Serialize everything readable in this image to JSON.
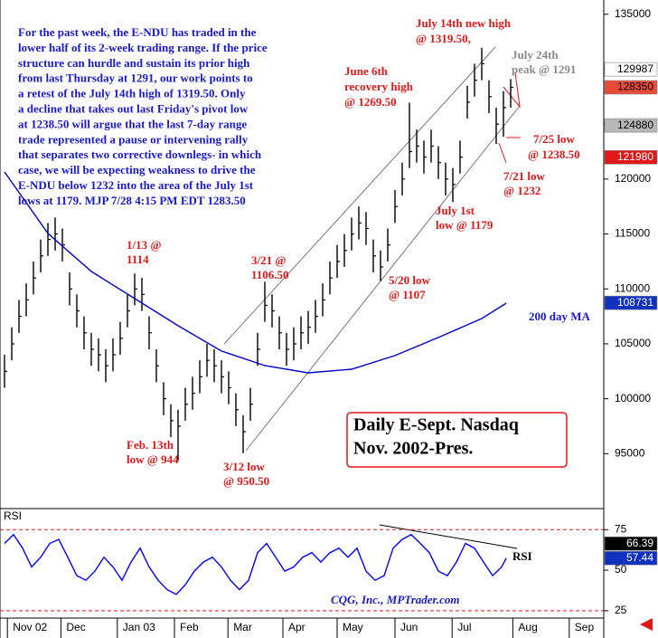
{
  "chart_data": [
    {
      "type": "hlc",
      "title": [
        "Daily E-Sept. Nasdaq",
        "Nov. 2002-Pres."
      ],
      "xlim": [
        -0.625,
        82.875
      ],
      "ylim": [
        90000,
        136300
      ],
      "yticks": [
        95000,
        100000,
        105000,
        110000,
        115000,
        120000,
        125000,
        130000,
        135000
      ],
      "color": "#000000",
      "high": [
        104000,
        106500,
        109000,
        110500,
        112500,
        114500,
        116000,
        116500,
        115500,
        111500,
        109500,
        107500,
        106000,
        105500,
        104500,
        105500,
        107000,
        109500,
        111400,
        111000,
        107500,
        104500,
        101500,
        99500,
        99000,
        101000,
        102000,
        103500,
        105000,
        104500,
        103500,
        102500,
        100500,
        98500,
        101000,
        106000,
        110650,
        109500,
        107500,
        106000,
        106500,
        107500,
        108000,
        109000,
        110500,
        112500,
        114000,
        115000,
        116500,
        117500,
        117000,
        114500,
        113500,
        115500,
        119000,
        121500,
        126950,
        124500,
        123500,
        124500,
        123000,
        121500,
        121000,
        123500,
        128500,
        130500,
        131950,
        129000,
        126500,
        128000,
        129100
      ],
      "low": [
        101000,
        103500,
        106000,
        107500,
        109500,
        111500,
        113000,
        113500,
        112500,
        108500,
        106500,
        104500,
        103000,
        102500,
        101500,
        102500,
        104000,
        106500,
        108500,
        108000,
        104500,
        101500,
        98500,
        96500,
        94400,
        98000,
        99000,
        100500,
        102000,
        101500,
        100500,
        99500,
        97500,
        95050,
        98000,
        103000,
        107000,
        106500,
        104500,
        103000,
        103500,
        104500,
        105000,
        106000,
        107500,
        109500,
        111000,
        112000,
        113500,
        114500,
        114000,
        111500,
        110700,
        112500,
        116000,
        118500,
        121000,
        121500,
        120500,
        121500,
        120000,
        118500,
        117900,
        120500,
        125500,
        127500,
        129000,
        126000,
        123200,
        123850,
        126500
      ],
      "close": [
        102500,
        105000,
        107500,
        109000,
        111000,
        113000,
        114500,
        115000,
        114000,
        110000,
        108000,
        106000,
        104500,
        104000,
        103000,
        104000,
        105500,
        108000,
        110000,
        109500,
        106000,
        103000,
        100000,
        98000,
        97500,
        99500,
        100500,
        102000,
        103500,
        103000,
        102000,
        101000,
        99000,
        97000,
        99500,
        104500,
        108500,
        108000,
        106000,
        104500,
        105000,
        106000,
        106500,
        107500,
        109000,
        111000,
        112500,
        113500,
        115000,
        116000,
        115500,
        113000,
        112000,
        114000,
        117500,
        120000,
        122500,
        123000,
        122000,
        123000,
        121500,
        120000,
        119500,
        122000,
        127000,
        129000,
        130500,
        127500,
        125000,
        126500,
        128350
      ],
      "series": [
        {
          "name": "200 day MA",
          "color": "#0000cc",
          "x": [
            0,
            6,
            12,
            18,
            24,
            30,
            36,
            42,
            48,
            54,
            60,
            66,
            69.4
          ],
          "values": [
            120650,
            115050,
            111590,
            109120,
            106650,
            104340,
            103020,
            102360,
            102690,
            103930,
            105580,
            107300,
            108700
          ]
        }
      ],
      "price_markers": [
        {
          "value": 129987,
          "color": "#ffffff",
          "text_color": "#000000"
        },
        {
          "value": 128350,
          "color": "#e84a3a",
          "text_color": "#000000"
        },
        {
          "value": 124880,
          "color": "#b8b8b8",
          "text_color": "#000000"
        },
        {
          "value": 121980,
          "color": "#e01818",
          "text_color": "#ffffff"
        },
        {
          "value": 108731,
          "color": "#1030c0",
          "text_color": "#ffffff"
        }
      ],
      "annotations": [
        {
          "color": "#1a1acc",
          "lines": [
            "For the past week, the E-NDU has traded in the",
            "lower half of its 2-week trading range. If the price",
            "structure can hurdle and sustain its prior high",
            "from last Thursday at 1291, our work points to",
            "a retest of the July 14th high of 1319.50. Only",
            "a decline that takes out last Friday's pivot low",
            "at 1238.50 will argue that the last 7-day range",
            "trade represented a pause or intervening rally",
            "that separates two corrective downlegs- in which",
            "case, we will be expecting weakness to drive the",
            "E-NDU below 1232 into the area of the July 1st",
            "lows  at 1179.  MJP 7/28 4:15 PM EDT 1283.50"
          ]
        },
        {
          "color": "#e01818",
          "lines": [
            "July 14th new high",
            "@ 1319.50,"
          ]
        },
        {
          "color": "#8a8a8a",
          "lines": [
            "July 24th",
            "peak @ 1291"
          ]
        },
        {
          "color": "#e01818",
          "lines": [
            "June 6th",
            "recovery high",
            "@ 1269.50"
          ]
        },
        {
          "color": "#e01818",
          "lines": [
            "1/13 @",
            "1114"
          ]
        },
        {
          "color": "#e01818",
          "lines": [
            "3/21 @",
            "1106.50"
          ]
        },
        {
          "color": "#e01818",
          "lines": [
            "5/20 low",
            "@ 1107"
          ]
        },
        {
          "color": "#e01818",
          "lines": [
            "July 1st",
            "low @ 1179"
          ]
        },
        {
          "color": "#e01818",
          "lines": [
            "7/25 low",
            "@ 1238.50"
          ]
        },
        {
          "color": "#e01818",
          "lines": [
            "7/21 low",
            "@ 1232"
          ]
        },
        {
          "color": "#e01818",
          "lines": [
            "Feb. 13th",
            "low @ 944"
          ]
        },
        {
          "color": "#e01818",
          "lines": [
            "3/12 low",
            "@ 950.50"
          ]
        },
        {
          "color": "#1a1acc",
          "lines": [
            "200 day MA"
          ]
        }
      ]
    },
    {
      "type": "line",
      "title": "RSI",
      "source": "CQG, Inc., MPTrader.com",
      "xlim": [
        -0.625,
        82.875
      ],
      "ylim": [
        21,
        88
      ],
      "yticks": [
        25,
        50,
        75
      ],
      "guide_lines": [
        75,
        25
      ],
      "xticks": [
        {
          "value": 0.4,
          "label": "Nov 02"
        },
        {
          "value": 7.8,
          "label": "Dec"
        },
        {
          "value": 15.6,
          "label": "Jan 03"
        },
        {
          "value": 23.5,
          "label": "Feb"
        },
        {
          "value": 30.9,
          "label": "Mar"
        },
        {
          "value": 38.5,
          "label": "Apr"
        },
        {
          "value": 46,
          "label": "May"
        },
        {
          "value": 54,
          "label": "Jun"
        },
        {
          "value": 61.9,
          "label": "Jul"
        },
        {
          "value": 70.3,
          "label": "Aug"
        },
        {
          "value": 78.1,
          "label": "Sep"
        }
      ],
      "series": [
        {
          "name": "RSI",
          "color": "#0000ff",
          "x": [
            0,
            1.25,
            2.5,
            3.75,
            5,
            6.25,
            7.5,
            8.75,
            10,
            11.25,
            12.5,
            13.75,
            15,
            16.25,
            17.5,
            18.75,
            20,
            21.25,
            22.5,
            23.75,
            25,
            26.25,
            27.5,
            28.75,
            30,
            31.25,
            32.5,
            33.75,
            35,
            36.25,
            37.5,
            38.75,
            40,
            41.25,
            42.5,
            43.75,
            45,
            46.25,
            47.5,
            48.75,
            50,
            51.25,
            52.5,
            53.75,
            55,
            56.25,
            57.5,
            58.75,
            60,
            61.25,
            62.5,
            63.75,
            65,
            66.25,
            67.5,
            68.75,
            69.4
          ],
          "values": [
            66.5,
            72,
            63.6,
            52,
            58,
            66.5,
            69,
            58,
            46.6,
            43.8,
            49.4,
            58,
            52,
            43.8,
            55,
            63.6,
            52,
            43.8,
            38,
            35,
            41,
            49.4,
            55,
            58,
            52,
            43.8,
            38,
            43.8,
            60.8,
            66.5,
            58,
            49.4,
            52,
            58,
            60.8,
            55,
            60.8,
            63.6,
            58,
            63.6,
            49.4,
            43.8,
            46.6,
            63.6,
            69,
            72,
            66.5,
            60.8,
            49.4,
            46.6,
            55,
            66.5,
            63.6,
            55,
            46.6,
            52,
            57.44
          ]
        }
      ],
      "rsi_markers": [
        {
          "value": 66.39,
          "color": "#000000",
          "text_color": "#ffffff"
        },
        {
          "value": 57.44,
          "color": "#1030c0",
          "text_color": "#ffffff"
        }
      ]
    }
  ]
}
